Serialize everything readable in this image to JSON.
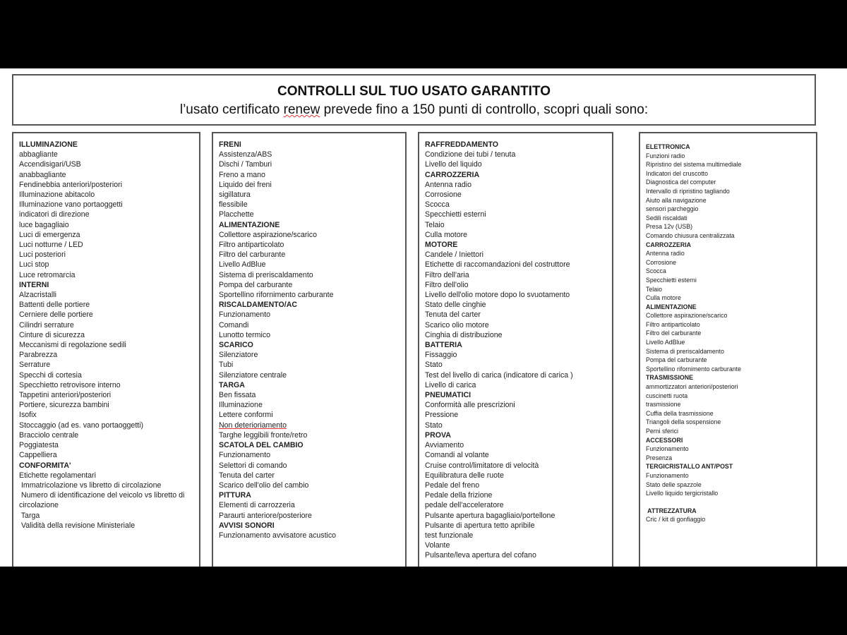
{
  "header": {
    "title": "CONTROLLI SUL TUO USATO GARANTITO",
    "subtitle_pre": "l’usato certificato ",
    "subtitle_brand": "renew",
    "subtitle_post": " prevede fino a 150 punti di controllo, scopri quali sono:"
  },
  "columns": [
    {
      "sections": [
        {
          "heading": "ILLUMINAZIONE",
          "items": [
            "abbagliante",
            "Accendisigari/USB",
            "anabbagliante",
            "Fendinebbia anteriori/posteriori",
            "Illuminazione abitacolo",
            "Illuminazione vano portaoggetti",
            "indicatori di direzione",
            "luce bagagliaio",
            "Luci di emergenza",
            "Luci notturne / LED",
            "Luci posteriori",
            "Luci stop",
            "Luce retromarcia"
          ]
        },
        {
          "heading": "INTERNI",
          "items": [
            "Alzacristalli",
            "Battenti delle portiere",
            "Cerniere delle portiere",
            "Cilindri serrature",
            "Cinture di sicurezza",
            "Meccanismi di regolazione sedili",
            "Parabrezza",
            "Serrature",
            "Specchi di cortesia",
            "Specchietto retrovisore interno",
            "Tappetini anteriori/posteriori",
            "Portiere, sicurezza bambini",
            "Isofix",
            "Stoccaggio (ad es. vano portaoggetti)",
            "Bracciolo centrale",
            "Poggiatesta",
            "Cappelliera"
          ]
        },
        {
          "heading": "CONFORMITA'",
          "items": [
            "Etichette regolamentari",
            " Immatricolazione vs libretto di circolazione",
            " Numero di identificazione del veicolo vs libretto di",
            "circolazione",
            " Targa",
            " Validità della revisione Ministeriale"
          ]
        }
      ]
    },
    {
      "sections": [
        {
          "heading": "FRENI",
          "items": [
            "Assistenza/ABS",
            "Dischi / Tamburi",
            "Freno a mano",
            "Liquido dei freni",
            "sigillatura",
            "flessibile",
            "Placchette"
          ]
        },
        {
          "heading": "ALIMENTAZIONE",
          "items": [
            "Collettore aspirazione/scarico",
            "Filtro antiparticolato",
            "Filtro del carburante",
            "Livello AdBlue",
            "Sistema di preriscaldamento",
            "Pompa del carburante",
            "Sportellino rifornimento carburante"
          ]
        },
        {
          "heading": "RISCALDAMENTO/AC",
          "items": [
            "Funzionamento",
            "Comandi",
            "Lunotto termico"
          ]
        },
        {
          "heading": "SCARICO",
          "items": [
            "Silenziatore",
            "Tubi",
            "Silenziatore centrale"
          ]
        },
        {
          "heading": "TARGA",
          "items": [
            "Ben fissata",
            "Illuminazione",
            "Lettere conformi",
            "Non deterioriamento",
            "Targhe leggibili fronte/retro"
          ]
        },
        {
          "heading": "SCATOLA DEL CAMBIO",
          "items": [
            "Funzionamento",
            "Selettori di comando",
            "Tenuta del carter",
            "Scarico dell'olio del cambio"
          ]
        },
        {
          "heading": "PITTURA",
          "items": [
            "Elementi di carrozzeria",
            "Paraurti anteriore/posteriore"
          ]
        },
        {
          "heading": "AVVISI SONORI",
          "items": [
            "Funzionamento avvisatore acustico"
          ]
        }
      ]
    },
    {
      "sections": [
        {
          "heading": "RAFFREDDAMENTO",
          "items": [
            "Condizione dei tubi / tenuta",
            "Livello del liquido"
          ]
        },
        {
          "heading": "CARROZZERIA",
          "items": [
            "Antenna radio",
            "Corrosione",
            "Scocca",
            "Specchietti esterni",
            "Telaio",
            "Culla motore"
          ]
        },
        {
          "heading": "MOTORE",
          "items": [
            "Candele / Iniettori",
            "Etichette di raccomandazioni del costruttore",
            "Filtro dell'aria",
            "Filtro dell'olio",
            "Livello dell'olio motore dopo lo svuotamento",
            "Stato delle cinghie",
            "Tenuta del carter",
            "Scarico olio motore",
            "Cinghia di distribuzione"
          ]
        },
        {
          "heading": "BATTERIA",
          "items": [
            "Fissaggio",
            "Stato",
            "Test del livello di carica (indicatore di carica )",
            "Livello di carica"
          ]
        },
        {
          "heading": "PNEUMATICI",
          "items": [
            "Conformità alle prescrizioni",
            "Pressione",
            "Stato"
          ]
        },
        {
          "heading": "PROVA",
          "items": [
            "Avviamento",
            "Comandi al volante",
            "Cruise control/limitatore di velocità",
            "Equilibratura delle ruote",
            "Pedale del freno",
            "Pedale della frizione",
            "pedale dell'acceleratore",
            "Pulsante apertura bagagliaio/portellone",
            "Pulsante di apertura tetto apribile",
            "test funzionale",
            "Volante",
            "Pulsante/leva apertura del cofano"
          ]
        }
      ]
    },
    {
      "sections": [
        {
          "heading": "ELETTRONICA",
          "items": [
            "Funzioni radio",
            "Ripristino del sistema multimediale",
            "Indicatori del cruscotto",
            "Diagnostica del computer",
            "Intervallo di ripristino tagliando",
            "Aiuto alla navigazione",
            "sensori parcheggio",
            "Sedili riscaldati",
            "Presa 12v (USB)",
            "Comando chiusura centralizzata"
          ]
        },
        {
          "heading": "CARROZZERIA",
          "items": [
            "Antenna radio",
            "Corrosione",
            "Scocca",
            "Specchietti esterni",
            "Telaio",
            "Culla motore"
          ]
        },
        {
          "heading": "ALIMENTAZIONE",
          "items": [
            "Collettore aspirazione/scarico",
            "Filtro antiparticolato",
            "Filtro del carburante",
            "Livello AdBlue",
            "Sistema di preriscaldamento",
            "Pompa del carburante",
            "Sportellino rifornimento carburante"
          ]
        },
        {
          "heading": "TRASMISSIONE",
          "items": [
            "ammortizzatori anteriori/posteriori",
            "cuscinetti ruota",
            "trasmissione",
            "Cuffia della trasmissione",
            "Triangoli della sospensione",
            "Perni sferici"
          ]
        },
        {
          "heading": "ACCESSORI",
          "items": [
            "Funzionamento",
            "Presenza"
          ]
        },
        {
          "heading": "TERGICRISTALLO ANT/POST",
          "items": [
            "Funzionamento",
            "Stato delle spazzole",
            "Livello liquido tergicristallo"
          ]
        },
        {
          "heading": " ATTREZZATURA",
          "items": [
            "Cric / kit di gonfiaggio"
          ]
        }
      ]
    }
  ]
}
